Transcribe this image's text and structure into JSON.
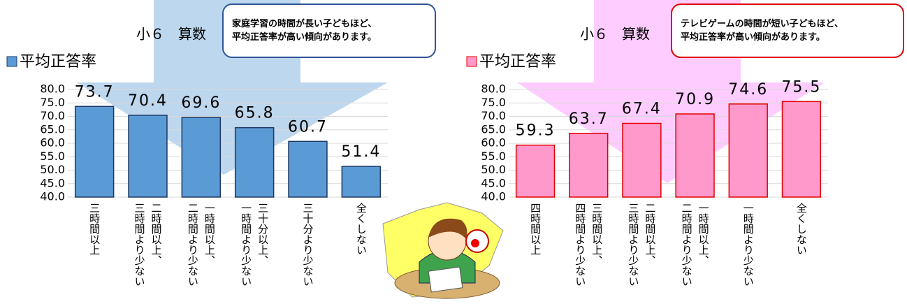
{
  "chart_data": [
    {
      "type": "bar",
      "title": "小６　算数",
      "annotation": "家庭学習の時間が長い子どもほど、\n平均正答率が高い傾向があります。",
      "categories": [
        "三時間以上",
        "二時間以上、\n三時間より少ない",
        "一時間以上、\n二時間より少ない",
        "三十分以上、\n一時間より少ない",
        "三十分より少ない",
        "全くしない"
      ],
      "series": [
        {
          "name": "平均正答率",
          "color": "#5b9bd5",
          "values": [
            73.7,
            70.4,
            69.6,
            65.8,
            60.7,
            51.4
          ]
        }
      ],
      "ylim": [
        40,
        80
      ],
      "yticks": [
        {
          "value": 40,
          "label": "40.0"
        },
        {
          "value": 45,
          "label": "45.0"
        },
        {
          "value": 50,
          "label": "50.0"
        },
        {
          "value": 55,
          "label": "55.0"
        },
        {
          "value": 60,
          "label": "60.0"
        },
        {
          "value": 65,
          "label": "65.0"
        },
        {
          "value": 70,
          "label": "70.0"
        },
        {
          "value": 75,
          "label": "75.0"
        },
        {
          "value": 80,
          "label": "80.0"
        }
      ],
      "grid": true
    },
    {
      "type": "bar",
      "title": "小６　算数",
      "annotation": "テレビゲームの時間が短い子どもほど、\n平均正答率が高い傾向があります。",
      "categories": [
        "四時間以上",
        "三時間以上、\n四時間より少ない",
        "二時間以上、\n三時間より少ない",
        "一時間以上、\n二時間より少ない",
        "一時間より少ない",
        "全くしない"
      ],
      "series": [
        {
          "name": "平均正答率",
          "color": "#ff99cc",
          "values": [
            59.3,
            63.7,
            67.4,
            70.9,
            74.6,
            75.5
          ]
        }
      ],
      "ylim": [
        40,
        80
      ],
      "yticks": [
        {
          "value": 40,
          "label": "40.0"
        },
        {
          "value": 45,
          "label": "45.0"
        },
        {
          "value": 50,
          "label": "50.0"
        },
        {
          "value": 55,
          "label": "55.0"
        },
        {
          "value": 60,
          "label": "60.0"
        },
        {
          "value": 65,
          "label": "65.0"
        },
        {
          "value": 70,
          "label": "70.0"
        },
        {
          "value": 75,
          "label": "75.0"
        },
        {
          "value": 80,
          "label": "80.0"
        }
      ],
      "grid": true
    }
  ]
}
